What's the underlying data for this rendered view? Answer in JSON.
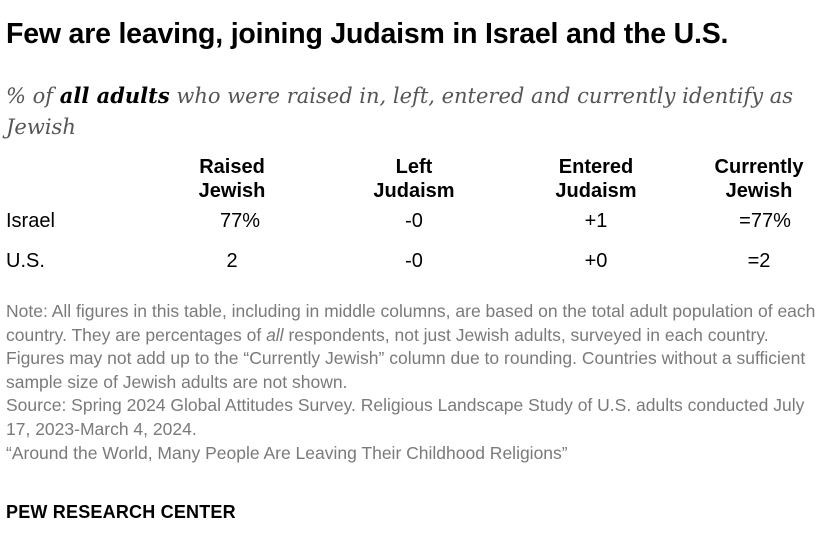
{
  "title": "Few are leaving, joining Judaism in Israel and the U.S.",
  "subtitle": {
    "prefix": "% of ",
    "emphasis": "all adults",
    "suffix": " who were raised in, left, entered and currently identify as Jewish"
  },
  "chart_data": {
    "type": "table",
    "columns": [
      {
        "line1": "Raised",
        "line2": "Jewish"
      },
      {
        "line1": "Left",
        "line2": "Judaism"
      },
      {
        "line1": "Entered",
        "line2": "Judaism"
      },
      {
        "line1": "Currently",
        "line2": "Jewish"
      }
    ],
    "rows": [
      {
        "label": "Israel",
        "values": [
          "77%",
          "-0",
          "+1",
          "=77%"
        ]
      },
      {
        "label": "U.S.",
        "values": [
          "2",
          "-0",
          "+0",
          "=2"
        ]
      }
    ]
  },
  "note": {
    "line1": "Note: All figures in this table, including in middle columns, are based on the total adult population of each country. They are percentages of ",
    "line1_emphasis": "all",
    "line1_rest": " respondents, not just Jewish adults, surveyed in each country. Figures may not add up to the “Currently Jewish” column due to rounding. Countries without a sufficient sample size of Jewish adults are not shown.",
    "source": "Source: Spring 2024 Global Attitudes Survey. Religious Landscape Study of U.S. adults conducted July 17, 2023-March 4, 2024.",
    "report": "“Around the World, Many People Are Leaving Their Childhood Religions”"
  },
  "brand": "PEW RESEARCH CENTER"
}
